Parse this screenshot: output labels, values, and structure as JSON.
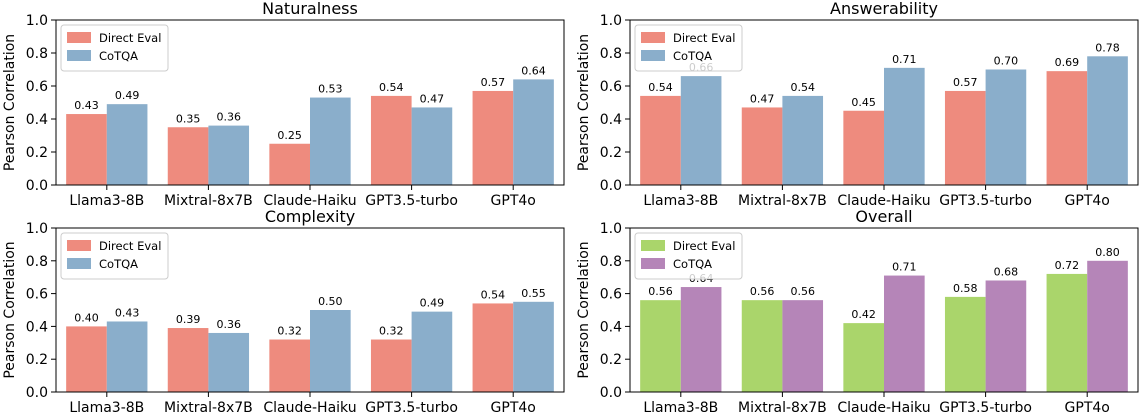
{
  "chart_data": [
    {
      "type": "bar",
      "title": "Naturalness",
      "xlabel": "",
      "ylabel": "Pearson Correlation",
      "ylim": [
        0,
        1.0
      ],
      "yticks": [
        "0.0",
        "0.2",
        "0.4",
        "0.6",
        "0.8",
        "1.0"
      ],
      "categories": [
        "Llama3-8B",
        "Mixtral-8x7B",
        "Claude-Haiku",
        "GPT3.5-turbo",
        "GPT4o"
      ],
      "legend": "top-left",
      "series": [
        {
          "name": "Direct Eval",
          "color": "#ee8b7e",
          "values": [
            0.43,
            0.35,
            0.25,
            0.54,
            0.57
          ],
          "labels": [
            "0.43",
            "0.35",
            "0.25",
            "0.54",
            "0.57"
          ]
        },
        {
          "name": "CoTQA",
          "color": "#8aaecb",
          "values": [
            0.49,
            0.36,
            0.53,
            0.47,
            0.64
          ],
          "labels": [
            "0.49",
            "0.36",
            "0.53",
            "0.47",
            "0.64"
          ]
        }
      ]
    },
    {
      "type": "bar",
      "title": "Answerability",
      "xlabel": "",
      "ylabel": "Pearson Correlation",
      "ylim": [
        0,
        1.0
      ],
      "yticks": [
        "0.0",
        "0.2",
        "0.4",
        "0.6",
        "0.8",
        "1.0"
      ],
      "categories": [
        "Llama3-8B",
        "Mixtral-8x7B",
        "Claude-Haiku",
        "GPT3.5-turbo",
        "GPT4o"
      ],
      "legend": "top-left",
      "series": [
        {
          "name": "Direct Eval",
          "color": "#ee8b7e",
          "values": [
            0.54,
            0.47,
            0.45,
            0.57,
            0.69
          ],
          "labels": [
            "0.54",
            "0.47",
            "0.45",
            "0.57",
            "0.69"
          ]
        },
        {
          "name": "CoTQA",
          "color": "#8aaecb",
          "values": [
            0.66,
            0.54,
            0.71,
            0.7,
            0.78
          ],
          "labels": [
            "0.66",
            "0.54",
            "0.71",
            "0.70",
            "0.78"
          ]
        }
      ]
    },
    {
      "type": "bar",
      "title": "Complexity",
      "xlabel": "",
      "ylabel": "Pearson Correlation",
      "ylim": [
        0,
        1.0
      ],
      "yticks": [
        "0.0",
        "0.2",
        "0.4",
        "0.6",
        "0.8",
        "1.0"
      ],
      "categories": [
        "Llama3-8B",
        "Mixtral-8x7B",
        "Claude-Haiku",
        "GPT3.5-turbo",
        "GPT4o"
      ],
      "legend": "top-left",
      "series": [
        {
          "name": "Direct Eval",
          "color": "#ee8b7e",
          "values": [
            0.4,
            0.39,
            0.32,
            0.32,
            0.54
          ],
          "labels": [
            "0.40",
            "0.39",
            "0.32",
            "0.32",
            "0.54"
          ]
        },
        {
          "name": "CoTQA",
          "color": "#8aaecb",
          "values": [
            0.43,
            0.36,
            0.5,
            0.49,
            0.55
          ],
          "labels": [
            "0.43",
            "0.36",
            "0.50",
            "0.49",
            "0.55"
          ]
        }
      ]
    },
    {
      "type": "bar",
      "title": "Overall",
      "xlabel": "",
      "ylabel": "Pearson Correlation",
      "ylim": [
        0,
        1.0
      ],
      "yticks": [
        "0.0",
        "0.2",
        "0.4",
        "0.6",
        "0.8",
        "1.0"
      ],
      "categories": [
        "Llama3-8B",
        "Mixtral-8x7B",
        "Claude-Haiku",
        "GPT3.5-turbo",
        "GPT4o"
      ],
      "legend": "top-left",
      "series": [
        {
          "name": "Direct Eval",
          "color": "#aad56b",
          "values": [
            0.56,
            0.56,
            0.42,
            0.58,
            0.72
          ],
          "labels": [
            "0.56",
            "0.56",
            "0.42",
            "0.58",
            "0.72"
          ]
        },
        {
          "name": "CoTQA",
          "color": "#b585b8",
          "values": [
            0.64,
            0.56,
            0.71,
            0.68,
            0.8
          ],
          "labels": [
            "0.64",
            "0.56",
            "0.71",
            "0.68",
            "0.80"
          ]
        }
      ]
    }
  ]
}
